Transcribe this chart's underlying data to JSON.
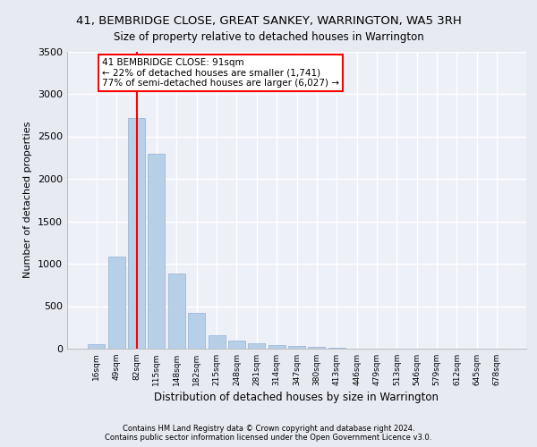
{
  "title": "41, BEMBRIDGE CLOSE, GREAT SANKEY, WARRINGTON, WA5 3RH",
  "subtitle": "Size of property relative to detached houses in Warrington",
  "xlabel": "Distribution of detached houses by size in Warrington",
  "ylabel": "Number of detached properties",
  "bar_color": "#b8cfe8",
  "bar_edge_color": "#90b0d8",
  "background_color": "#e8eaf2",
  "plot_bg_color": "#eef0f8",
  "categories": [
    "16sqm",
    "49sqm",
    "82sqm",
    "115sqm",
    "148sqm",
    "182sqm",
    "215sqm",
    "248sqm",
    "281sqm",
    "314sqm",
    "347sqm",
    "380sqm",
    "413sqm",
    "446sqm",
    "479sqm",
    "513sqm",
    "546sqm",
    "579sqm",
    "612sqm",
    "645sqm",
    "678sqm"
  ],
  "values": [
    50,
    1080,
    2720,
    2300,
    880,
    420,
    160,
    100,
    60,
    40,
    28,
    18,
    10,
    5,
    3,
    2,
    1,
    1,
    0,
    0,
    0
  ],
  "property_bin_index": 2,
  "annotation_title": "41 BEMBRIDGE CLOSE: 91sqm",
  "annotation_line1": "← 22% of detached houses are smaller (1,741)",
  "annotation_line2": "77% of semi-detached houses are larger (6,027) →",
  "ylim": [
    0,
    3500
  ],
  "yticks": [
    0,
    500,
    1000,
    1500,
    2000,
    2500,
    3000,
    3500
  ],
  "footer1": "Contains HM Land Registry data © Crown copyright and database right 2024.",
  "footer2": "Contains public sector information licensed under the Open Government Licence v3.0."
}
